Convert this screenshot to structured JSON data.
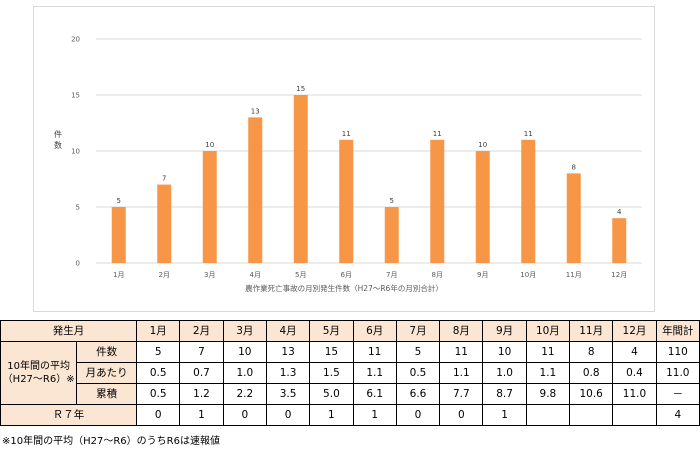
{
  "chart_data": {
    "type": "bar",
    "categories": [
      "1月",
      "2月",
      "3月",
      "4月",
      "5月",
      "6月",
      "7月",
      "8月",
      "9月",
      "10月",
      "11月",
      "12月"
    ],
    "values": [
      5,
      7,
      10,
      13,
      15,
      11,
      5,
      11,
      10,
      11,
      8,
      4
    ],
    "title": "",
    "xlabel": "農作業死亡事故の月別発生件数（H27～R6年の月別合計）",
    "ylabel": "件数",
    "ylim": [
      0,
      20
    ],
    "yticks": [
      0,
      5,
      10,
      15,
      20
    ],
    "grid": true,
    "bar_color": "#f79646",
    "grid_color": "#d9d9d9"
  },
  "table": {
    "header_label": "発生月",
    "months": [
      "1月",
      "2月",
      "3月",
      "4月",
      "5月",
      "6月",
      "7月",
      "8月",
      "9月",
      "10月",
      "11月",
      "12月"
    ],
    "annual_header": "年間計",
    "avg_label_line1": "10年間の平均",
    "avg_label_line2": "（H27～R6）※",
    "rows": [
      {
        "label": "件数",
        "values": [
          "5",
          "7",
          "10",
          "13",
          "15",
          "11",
          "5",
          "11",
          "10",
          "11",
          "8",
          "4"
        ],
        "total": "110"
      },
      {
        "label": "月あたり",
        "values": [
          "0.5",
          "0.7",
          "1.0",
          "1.3",
          "1.5",
          "1.1",
          "0.5",
          "1.1",
          "1.0",
          "1.1",
          "0.8",
          "0.4"
        ],
        "total": "11.0"
      },
      {
        "label": "累積",
        "values": [
          "0.5",
          "1.2",
          "2.2",
          "3.5",
          "5.0",
          "6.1",
          "6.6",
          "7.7",
          "8.7",
          "9.8",
          "10.6",
          "11.0"
        ],
        "total": "－"
      }
    ],
    "r7_label": "Ｒ７年",
    "r7_values": [
      "0",
      "1",
      "0",
      "0",
      "1",
      "1",
      "0",
      "0",
      "1",
      "",
      "",
      ""
    ],
    "r7_total": "4"
  },
  "footnote": "※10年間の平均（H27～R6）のうちR6は速報値"
}
